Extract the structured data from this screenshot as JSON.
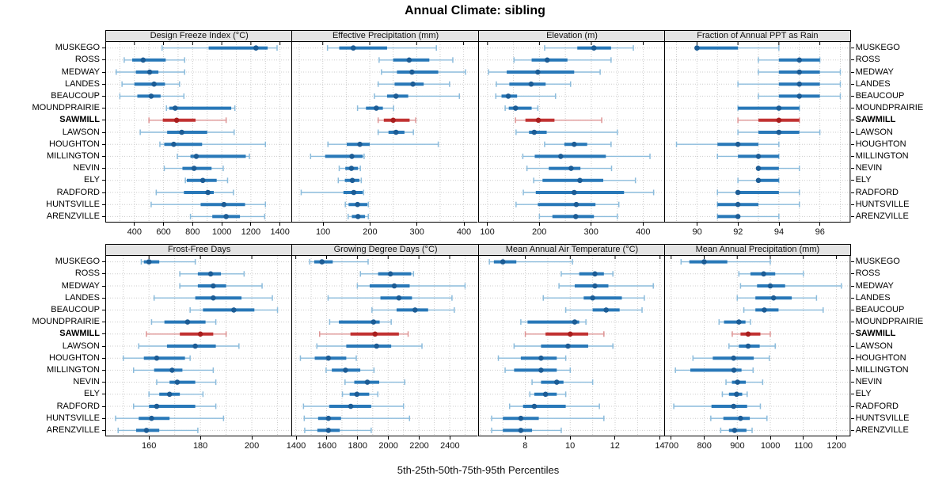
{
  "title": "Annual Climate: sibling",
  "xlabel": "5th-25th-50th-75th-95th Percentiles",
  "percentiles": [
    "5th",
    "25th",
    "50th",
    "75th",
    "95th"
  ],
  "sites": [
    "MUSKEGO",
    "ROSS",
    "MEDWAY",
    "LANDES",
    "BEAUCOUP",
    "MOUNDPRAIRIE",
    "SAWMILL",
    "LAWSON",
    "HOUGHTON",
    "MILLINGTON",
    "NEVIN",
    "ELY",
    "RADFORD",
    "HUNTSVILLE",
    "ARENZVILLE"
  ],
  "highlight_site": "SAWMILL",
  "colors": {
    "blue": "#2878b8",
    "blue_light": "#8cbcdc",
    "blue_dot": "#1c5c95",
    "red": "#c13232",
    "red_light": "#de9494",
    "red_dot": "#a81e1e",
    "header_bg": "#e4e4e4",
    "grid": "#cccccc",
    "border": "#000000"
  },
  "chart_data": [
    {
      "type": "percentile-interval",
      "title": "Design Freeze Index (°C)",
      "xlim": [
        200,
        1480
      ],
      "ticks": [
        400,
        600,
        800,
        1000,
        1200,
        1400
      ],
      "grid_step": 100,
      "values": [
        [
          590,
          910,
          1235,
          1315,
          1380
        ],
        [
          330,
          385,
          460,
          615,
          745
        ],
        [
          275,
          410,
          505,
          565,
          745
        ],
        [
          315,
          400,
          535,
          610,
          710
        ],
        [
          300,
          420,
          515,
          580,
          740
        ],
        [
          620,
          640,
          680,
          1065,
          1090
        ],
        [
          500,
          595,
          690,
          820,
          1030
        ],
        [
          440,
          625,
          725,
          900,
          1085
        ],
        [
          575,
          605,
          670,
          865,
          1300
        ],
        [
          695,
          785,
          825,
          1165,
          1190
        ],
        [
          605,
          730,
          810,
          930,
          1010
        ],
        [
          750,
          760,
          870,
          965,
          1040
        ],
        [
          550,
          740,
          905,
          945,
          1080
        ],
        [
          515,
          855,
          1015,
          1160,
          1300
        ],
        [
          785,
          935,
          1030,
          1125,
          1295
        ]
      ]
    },
    {
      "type": "percentile-interval",
      "title": "Effective Precipitation (mm)",
      "xlim": [
        33,
        430
      ],
      "ticks": [
        100,
        200,
        300,
        400
      ],
      "grid_step": 50,
      "values": [
        [
          110,
          135,
          165,
          237,
          342
        ],
        [
          220,
          250,
          284,
          327,
          377
        ],
        [
          225,
          258,
          290,
          346,
          404
        ],
        [
          218,
          253,
          292,
          315,
          370
        ],
        [
          210,
          237,
          256,
          282,
          391
        ],
        [
          174,
          192,
          214,
          228,
          251
        ],
        [
          218,
          230,
          250,
          285,
          298
        ],
        [
          218,
          240,
          256,
          274,
          293
        ],
        [
          111,
          151,
          179,
          200,
          346
        ],
        [
          74,
          105,
          162,
          185,
          188
        ],
        [
          135,
          148,
          161,
          175,
          180
        ],
        [
          133,
          147,
          163,
          178,
          182
        ],
        [
          54,
          144,
          166,
          185,
          187
        ],
        [
          148,
          155,
          174,
          195,
          197
        ],
        [
          154,
          162,
          175,
          190,
          197
        ]
      ]
    },
    {
      "type": "percentile-interval",
      "title": "Elevation (m)",
      "xlim": [
        82,
        441
      ],
      "ticks": [
        100,
        200,
        300,
        400
      ],
      "grid_step": 50,
      "values": [
        [
          210,
          273,
          305,
          338,
          381
        ],
        [
          151,
          185,
          215,
          254,
          338
        ],
        [
          102,
          137,
          197,
          267,
          317
        ],
        [
          117,
          142,
          184,
          212,
          260
        ],
        [
          116,
          127,
          140,
          157,
          231
        ],
        [
          134,
          141,
          154,
          185,
          197
        ],
        [
          154,
          173,
          198,
          229,
          320
        ],
        [
          155,
          180,
          190,
          214,
          350
        ],
        [
          210,
          248,
          267,
          292,
          338
        ],
        [
          168,
          191,
          241,
          328,
          413
        ],
        [
          176,
          218,
          261,
          279,
          339
        ],
        [
          189,
          206,
          278,
          323,
          385
        ],
        [
          169,
          193,
          267,
          363,
          420
        ],
        [
          155,
          197,
          271,
          308,
          353
        ],
        [
          200,
          225,
          270,
          305,
          350
        ]
      ]
    },
    {
      "type": "percentile-interval",
      "title": "Fraction of Annual PPT as Rain",
      "xlim": [
        88.4,
        97.5
      ],
      "ticks": [
        90,
        92,
        94,
        96
      ],
      "grid_step": 1,
      "values": [
        [
          90,
          90,
          90,
          92,
          94
        ],
        [
          93,
          94,
          95,
          96,
          96
        ],
        [
          93,
          94,
          95,
          96,
          97
        ],
        [
          92,
          94,
          95,
          96,
          97
        ],
        [
          93,
          94,
          95,
          96,
          97
        ],
        [
          92,
          92,
          94,
          95,
          95
        ],
        [
          92,
          93,
          94,
          95,
          95
        ],
        [
          92,
          93,
          94,
          95,
          96
        ],
        [
          89,
          91,
          92,
          93,
          94
        ],
        [
          91,
          92,
          93,
          94,
          94
        ],
        [
          93,
          93,
          93,
          94,
          95
        ],
        [
          92,
          93,
          93,
          94,
          94
        ],
        [
          91,
          92,
          92,
          94,
          95
        ],
        [
          91,
          91,
          92,
          93,
          95
        ],
        [
          91,
          91,
          92,
          92,
          94
        ]
      ]
    },
    {
      "type": "percentile-interval",
      "title": "Frost-Free Days",
      "xlim": [
        143,
        215.5
      ],
      "ticks": [
        160,
        180,
        200
      ],
      "grid_step": 10,
      "values": [
        [
          157,
          158,
          160,
          164,
          178
        ],
        [
          172,
          179,
          184,
          188,
          197
        ],
        [
          172,
          179,
          185,
          190,
          204
        ],
        [
          162,
          178,
          185,
          196,
          208
        ],
        [
          176,
          181,
          193,
          201,
          210
        ],
        [
          161,
          166,
          175,
          182,
          186
        ],
        [
          159,
          172,
          180,
          185,
          190
        ],
        [
          156,
          167,
          178,
          186,
          195
        ],
        [
          150,
          158,
          163,
          174,
          176
        ],
        [
          154,
          162,
          169,
          173,
          185
        ],
        [
          163,
          168,
          171,
          178,
          186
        ],
        [
          160,
          164,
          168,
          172,
          181
        ],
        [
          154,
          160,
          163,
          178,
          186
        ],
        [
          147,
          156,
          161,
          168,
          189
        ],
        [
          148,
          155,
          159,
          164,
          179
        ]
      ]
    },
    {
      "type": "percentile-interval",
      "title": "Growing Degree Days (°C)",
      "xlim": [
        1371,
        2582
      ],
      "ticks": [
        1400,
        1600,
        1800,
        2000,
        2200,
        2400
      ],
      "grid_step": 100,
      "values": [
        [
          1490,
          1520,
          1570,
          1640,
          1870
        ],
        [
          1820,
          1935,
          2015,
          2150,
          2165
        ],
        [
          1800,
          1880,
          2040,
          2140,
          2500
        ],
        [
          1610,
          1950,
          2070,
          2155,
          2415
        ],
        [
          1895,
          2055,
          2175,
          2260,
          2430
        ],
        [
          1620,
          1680,
          1905,
          1945,
          2020
        ],
        [
          1555,
          1755,
          1915,
          2070,
          2130
        ],
        [
          1537,
          1728,
          1925,
          2020,
          2220
        ],
        [
          1430,
          1523,
          1612,
          1728,
          1793
        ],
        [
          1597,
          1634,
          1723,
          1819,
          1908
        ],
        [
          1720,
          1780,
          1865,
          1942,
          2108
        ],
        [
          1703,
          1750,
          1797,
          1877,
          1933
        ],
        [
          1450,
          1617,
          1757,
          1890,
          2100
        ],
        [
          1455,
          1545,
          1612,
          1694,
          2139
        ],
        [
          1458,
          1540,
          1612,
          1686,
          1890
        ]
      ]
    },
    {
      "type": "percentile-interval",
      "title": "Mean Annual Air Temperature (°C)",
      "xlim": [
        5.9,
        14.2
      ],
      "ticks": [
        8,
        10,
        12,
        14
      ],
      "grid_step": 1,
      "values": [
        [
          6.4,
          6.6,
          7.0,
          7.6,
          10.1
        ],
        [
          9.6,
          10.4,
          11.1,
          11.5,
          11.9
        ],
        [
          9.5,
          10.2,
          11.1,
          11.7,
          13.7
        ],
        [
          8.8,
          10.6,
          11.0,
          12.3,
          13.3
        ],
        [
          9.8,
          11.0,
          11.6,
          12.2,
          13.2
        ],
        [
          7.8,
          8.1,
          10.2,
          10.4,
          10.7
        ],
        [
          8.0,
          8.9,
          10.0,
          10.8,
          11.5
        ],
        [
          7.5,
          8.7,
          9.9,
          10.8,
          11.9
        ],
        [
          6.8,
          7.8,
          8.7,
          9.4,
          9.8
        ],
        [
          7.1,
          7.5,
          8.7,
          9.4,
          10.0
        ],
        [
          8.3,
          8.7,
          9.4,
          9.7,
          11.0
        ],
        [
          8.2,
          8.4,
          8.9,
          9.4,
          9.8
        ],
        [
          7.3,
          7.9,
          8.4,
          9.8,
          11.3
        ],
        [
          6.5,
          7.0,
          7.8,
          8.6,
          11.5
        ],
        [
          6.5,
          7.0,
          7.8,
          8.3,
          9.6
        ]
      ]
    },
    {
      "type": "percentile-interval",
      "title": "Mean Annual Precipitation (mm)",
      "xlim": [
        679,
        1243
      ],
      "ticks": [
        700,
        800,
        900,
        1000,
        1100,
        1200
      ],
      "grid_step": 100,
      "values": [
        [
          730,
          755,
          800,
          870,
          1000
        ],
        [
          905,
          940,
          980,
          1015,
          1100
        ],
        [
          910,
          960,
          1000,
          1045,
          1215
        ],
        [
          900,
          955,
          1010,
          1065,
          1140
        ],
        [
          920,
          955,
          982,
          1025,
          1160
        ],
        [
          845,
          860,
          905,
          925,
          940
        ],
        [
          885,
          910,
          933,
          970,
          1000
        ],
        [
          875,
          905,
          933,
          968,
          1015
        ],
        [
          766,
          826,
          889,
          950,
          997
        ],
        [
          713,
          758,
          890,
          913,
          948
        ],
        [
          866,
          884,
          901,
          926,
          977
        ],
        [
          855,
          875,
          898,
          915,
          930
        ],
        [
          708,
          822,
          889,
          930,
          970
        ],
        [
          820,
          858,
          910,
          938,
          990
        ],
        [
          850,
          875,
          892,
          928,
          945
        ]
      ]
    }
  ]
}
